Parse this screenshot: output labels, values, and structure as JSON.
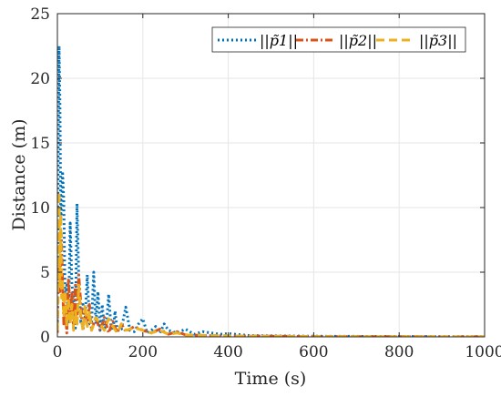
{
  "chart_data": {
    "type": "line",
    "title": "",
    "xlabel": "Time (s)",
    "ylabel": "Distance (m)",
    "xlim": [
      0,
      1000
    ],
    "ylim": [
      0,
      25
    ],
    "xticks": [
      "0",
      "200",
      "400",
      "600",
      "800",
      "1000"
    ],
    "yticks": [
      "0",
      "5",
      "10",
      "15",
      "20",
      "25"
    ],
    "grid": true,
    "legend_position": "top-right",
    "series": [
      {
        "name": "||p̃1||",
        "color": "#0072BD",
        "dash": "dotted",
        "x": [
          0,
          2,
          4,
          6,
          8,
          10,
          12,
          15,
          18,
          22,
          26,
          30,
          34,
          38,
          42,
          46,
          50,
          55,
          60,
          65,
          70,
          75,
          80,
          85,
          90,
          95,
          100,
          105,
          110,
          115,
          120,
          125,
          130,
          135,
          140,
          150,
          160,
          170,
          180,
          190,
          200,
          210,
          220,
          230,
          240,
          250,
          260,
          280,
          300,
          320,
          340,
          360,
          380,
          400,
          450,
          500,
          600,
          700,
          800,
          900,
          1000
        ],
        "y": [
          0.5,
          15.0,
          22.5,
          18.0,
          9.0,
          10.0,
          12.8,
          10.5,
          3.0,
          4.0,
          1.0,
          8.8,
          4.0,
          3.0,
          0.5,
          10.3,
          4.5,
          1.0,
          2.5,
          1.5,
          4.8,
          1.0,
          1.0,
          5.0,
          1.0,
          3.5,
          0.5,
          2.5,
          0.5,
          1.0,
          3.3,
          1.0,
          0.5,
          2.0,
          0.5,
          0.6,
          2.3,
          0.5,
          0.4,
          1.0,
          1.4,
          0.3,
          0.5,
          0.8,
          0.3,
          1.0,
          0.5,
          0.3,
          0.6,
          0.2,
          0.4,
          0.3,
          0.2,
          0.25,
          0.1,
          0.08,
          0.05,
          0.04,
          0.03,
          0.02,
          0.02
        ]
      },
      {
        "name": "||p̃2||",
        "color": "#D95319",
        "dash": "dash-dot",
        "x": [
          0,
          3,
          6,
          9,
          12,
          15,
          18,
          22,
          26,
          30,
          34,
          38,
          42,
          46,
          50,
          55,
          60,
          65,
          70,
          75,
          80,
          90,
          100,
          110,
          120,
          130,
          140,
          150,
          160,
          180,
          200,
          220,
          240,
          260,
          280,
          300,
          350,
          400,
          500,
          600,
          700,
          800,
          900,
          1000
        ],
        "y": [
          0.3,
          6.0,
          3.5,
          8.0,
          4.5,
          1.0,
          2.5,
          0.3,
          4.5,
          1.5,
          3.5,
          0.5,
          4.0,
          1.0,
          4.8,
          2.5,
          0.5,
          2.0,
          1.0,
          2.5,
          0.5,
          1.5,
          0.5,
          1.5,
          0.3,
          1.2,
          0.3,
          1.0,
          0.4,
          0.8,
          0.5,
          0.3,
          0.6,
          0.2,
          0.4,
          0.15,
          0.1,
          0.08,
          0.05,
          0.03,
          0.02,
          0.02,
          0.01,
          0.01
        ]
      },
      {
        "name": "||p̃3||",
        "color": "#EDB120",
        "dash": "dashed",
        "x": [
          0,
          2,
          4,
          6,
          8,
          10,
          12,
          15,
          18,
          22,
          26,
          30,
          34,
          38,
          42,
          46,
          50,
          55,
          60,
          65,
          70,
          75,
          80,
          90,
          100,
          110,
          120,
          130,
          140,
          150,
          160,
          180,
          200,
          220,
          240,
          260,
          280,
          300,
          350,
          400,
          500,
          600,
          700,
          800,
          900,
          1000
        ],
        "y": [
          0.5,
          6.0,
          11.2,
          4.0,
          9.5,
          3.0,
          4.5,
          1.5,
          3.5,
          0.8,
          3.0,
          1.0,
          2.5,
          0.5,
          2.0,
          1.0,
          4.0,
          1.5,
          0.5,
          2.5,
          0.8,
          2.0,
          0.5,
          1.5,
          1.0,
          0.5,
          1.4,
          0.8,
          0.3,
          1.0,
          0.5,
          0.7,
          0.5,
          0.3,
          0.5,
          0.2,
          0.3,
          0.15,
          0.1,
          0.08,
          0.05,
          0.03,
          0.02,
          0.02,
          0.01,
          0.01
        ]
      }
    ]
  }
}
